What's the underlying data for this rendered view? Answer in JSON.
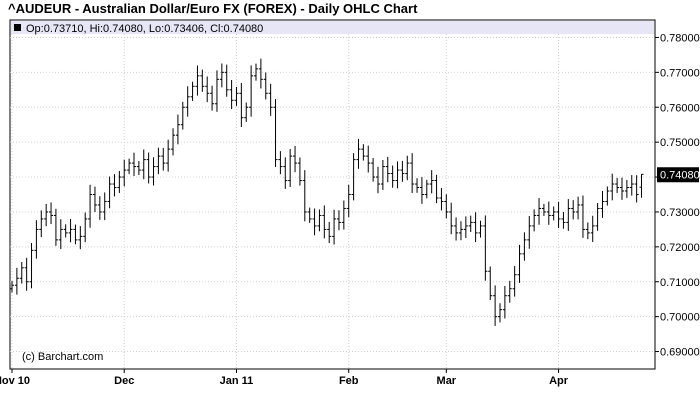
{
  "title": "^AUDEUR - Australian Dollar/Euro FX (FOREX) - Daily OHLC Chart",
  "legend": {
    "text": "Op:0.73710, Hi:0.74080, Lo:0.73406, Cl:0.74080",
    "marker_color": "#000000"
  },
  "credit": "(c) Barchart.com",
  "last_price_label": "0.74080",
  "colors": {
    "legend_bg": "#e6e6f7",
    "grid": "#d0d0d0",
    "bar": "#000000",
    "price_tag": "#000000"
  },
  "chart_data": {
    "type": "ohlc",
    "title": "^AUDEUR - Australian Dollar/Euro FX (FOREX) - Daily OHLC Chart",
    "ylim": [
      0.685,
      0.785
    ],
    "y_ticks": [
      0.69,
      0.7,
      0.71,
      0.72,
      0.73,
      0.74,
      0.75,
      0.76,
      0.77,
      0.78
    ],
    "y_tick_labels": [
      "0.69000",
      "0.70000",
      "0.71000",
      "0.72000",
      "0.73000",
      "0.74000",
      "0.75000",
      "0.76000",
      "0.77000",
      "0.78000"
    ],
    "x_ticks": [
      {
        "label": "Nov 10",
        "index": 0
      },
      {
        "label": "Dec",
        "index": 23
      },
      {
        "label": "Jan 11",
        "index": 46
      },
      {
        "label": "Feb",
        "index": 69
      },
      {
        "label": "Mar",
        "index": 89
      },
      {
        "label": "Apr",
        "index": 112
      }
    ],
    "grid": true,
    "close": [
      0.709,
      0.711,
      0.714,
      0.71,
      0.719,
      0.725,
      0.728,
      0.73,
      0.729,
      0.722,
      0.725,
      0.724,
      0.725,
      0.722,
      0.723,
      0.728,
      0.735,
      0.732,
      0.73,
      0.733,
      0.738,
      0.737,
      0.74,
      0.742,
      0.744,
      0.743,
      0.742,
      0.745,
      0.74,
      0.743,
      0.746,
      0.744,
      0.748,
      0.752,
      0.755,
      0.76,
      0.763,
      0.766,
      0.769,
      0.766,
      0.764,
      0.761,
      0.768,
      0.77,
      0.765,
      0.762,
      0.764,
      0.757,
      0.76,
      0.769,
      0.771,
      0.768,
      0.764,
      0.76,
      0.745,
      0.743,
      0.739,
      0.746,
      0.744,
      0.739,
      0.73,
      0.728,
      0.726,
      0.729,
      0.725,
      0.723,
      0.728,
      0.727,
      0.731,
      0.735,
      0.745,
      0.748,
      0.746,
      0.744,
      0.74,
      0.738,
      0.743,
      0.741,
      0.739,
      0.742,
      0.741,
      0.744,
      0.738,
      0.737,
      0.735,
      0.738,
      0.739,
      0.734,
      0.733,
      0.73,
      0.726,
      0.724,
      0.725,
      0.726,
      0.727,
      0.724,
      0.726,
      0.713,
      0.706,
      0.7,
      0.702,
      0.706,
      0.708,
      0.712,
      0.718,
      0.722,
      0.726,
      0.729,
      0.731,
      0.73,
      0.729,
      0.73,
      0.728,
      0.727,
      0.731,
      0.73,
      0.732,
      0.725,
      0.724,
      0.726,
      0.731,
      0.733,
      0.736,
      0.738,
      0.737,
      0.736,
      0.737,
      0.738,
      0.735,
      0.7408
    ],
    "last": {
      "open": 0.7371,
      "high": 0.7408,
      "low": 0.73406,
      "close": 0.7408
    }
  }
}
